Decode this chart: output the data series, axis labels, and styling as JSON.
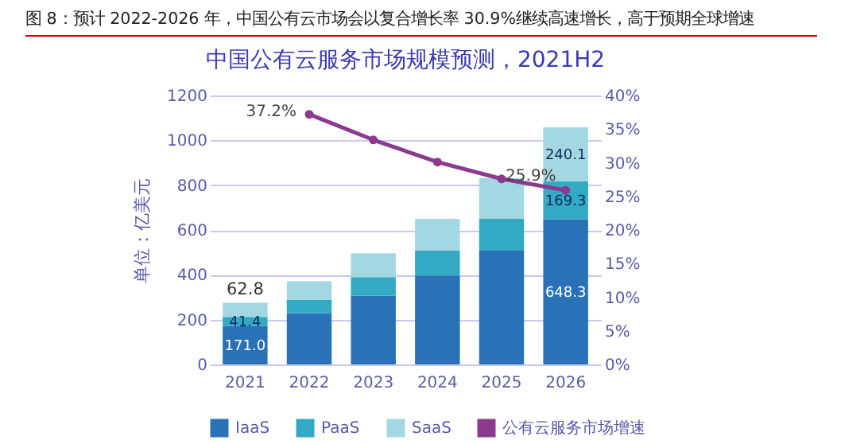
{
  "chart_data": {
    "type": "bar",
    "stacked": true,
    "title": "中国公有云服务市场规模预测，2021H2",
    "annotations": [
      "图 8：预计 2022-2026 年，中国公有云市场会以复合增长率 30.9%继续高速增长，高于预期全球增速"
    ],
    "ylabel": "单位：亿美元",
    "categories": [
      "2021",
      "2022",
      "2023",
      "2024",
      "2025",
      "2026"
    ],
    "series": [
      {
        "name": "IaaS",
        "color": "#2a72b8",
        "values": [
          171.0,
          229,
          307,
          397,
          508,
          648.3
        ],
        "value_labels": [
          "171.0",
          null,
          null,
          null,
          null,
          "648.3"
        ]
      },
      {
        "name": "PaaS",
        "color": "#33a9c4",
        "values": [
          41.4,
          60,
          83,
          111,
          142,
          169.3
        ],
        "value_labels": [
          "41.4",
          null,
          null,
          null,
          null,
          "169.3"
        ]
      },
      {
        "name": "SaaS",
        "color": "#a3d8e2",
        "values": [
          62.8,
          82,
          106,
          142,
          182,
          240.1
        ],
        "value_labels": [
          "62.8",
          null,
          null,
          null,
          null,
          "240.1"
        ]
      },
      {
        "name": "公有云服务市场增速",
        "color": "#8b3a8f",
        "type": "line",
        "axis": "y2",
        "values": [
          null,
          37.2,
          33.4,
          30.1,
          27.6,
          25.9
        ],
        "value_labels": [
          null,
          "37.2%",
          null,
          null,
          null,
          "25.9%"
        ]
      }
    ],
    "ylim": [
      0,
      1200
    ],
    "yticks": [
      0,
      200,
      400,
      600,
      800,
      1000,
      1200
    ],
    "y2lim": [
      0,
      40
    ],
    "y2ticks": [
      {
        "value": 0,
        "label": "0%"
      },
      {
        "value": 5,
        "label": "5%"
      },
      {
        "value": 10,
        "label": "10%"
      },
      {
        "value": 15,
        "label": "15%"
      },
      {
        "value": 20,
        "label": "20%"
      },
      {
        "value": 25,
        "label": "25%"
      },
      {
        "value": 30,
        "label": "30%"
      },
      {
        "value": 35,
        "label": "35%"
      },
      {
        "value": 40,
        "label": "40%"
      }
    ],
    "grid": "y",
    "legend": "bottom",
    "marker": "circle"
  }
}
